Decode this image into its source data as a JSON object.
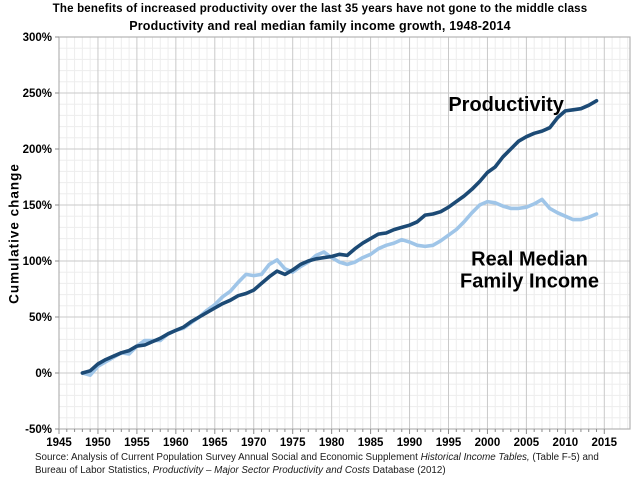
{
  "header": {
    "title_line1": "The benefits of increased productivity over the last 35 years have not gone to the middle class",
    "title_line2": "Productivity and real median family income growth, 1948-2014"
  },
  "chart_data": {
    "type": "line",
    "title": "The benefits of increased productivity over the last 35 years have not gone to the middle class",
    "subtitle": "Productivity and real median family income growth, 1948-2014",
    "xlabel": "",
    "ylabel": "Cumulative change",
    "ylim": [
      -50,
      300
    ],
    "xlim": [
      1945,
      2015
    ],
    "y_ticks": [
      -50,
      0,
      50,
      100,
      150,
      200,
      250,
      300
    ],
    "y_tick_format": "percent",
    "x_ticks": [
      1945,
      1950,
      1955,
      1960,
      1965,
      1970,
      1975,
      1980,
      1985,
      1990,
      1995,
      2000,
      2005,
      2010,
      2015
    ],
    "grid": "minor yearly / 10% + major 5-year / 50%",
    "legend_position": "direct-labels-on-chart",
    "x": [
      1948,
      1949,
      1950,
      1951,
      1952,
      1953,
      1954,
      1955,
      1956,
      1957,
      1958,
      1959,
      1960,
      1961,
      1962,
      1963,
      1964,
      1965,
      1966,
      1967,
      1968,
      1969,
      1970,
      1971,
      1972,
      1973,
      1974,
      1975,
      1976,
      1977,
      1978,
      1979,
      1980,
      1981,
      1982,
      1983,
      1984,
      1985,
      1986,
      1987,
      1988,
      1989,
      1990,
      1991,
      1992,
      1993,
      1994,
      1995,
      1996,
      1997,
      1998,
      1999,
      2000,
      2001,
      2002,
      2003,
      2004,
      2005,
      2006,
      2007,
      2008,
      2009,
      2010,
      2011,
      2012,
      2013,
      2014
    ],
    "series": [
      {
        "name": "Productivity",
        "color": "#1c4a75",
        "values": [
          0,
          2,
          8,
          12,
          15,
          18,
          20,
          24,
          25,
          28,
          31,
          35,
          38,
          41,
          46,
          50,
          54,
          58,
          62,
          65,
          69,
          71,
          74,
          80,
          86,
          91,
          88,
          92,
          97,
          100,
          102,
          103,
          104,
          106,
          105,
          111,
          116,
          120,
          124,
          125,
          128,
          130,
          132,
          135,
          141,
          142,
          144,
          148,
          153,
          158,
          164,
          171,
          179,
          184,
          193,
          200,
          207,
          211,
          214,
          216,
          219,
          228,
          234,
          235,
          236,
          239,
          243
        ]
      },
      {
        "name": "Real Median Family Income",
        "color": "#9fc5e8",
        "values": [
          0,
          -2,
          6,
          10,
          14,
          18,
          17,
          24,
          29,
          29,
          29,
          35,
          38,
          40,
          45,
          50,
          56,
          61,
          68,
          73,
          81,
          88,
          87,
          88,
          97,
          101,
          93,
          90,
          95,
          99,
          105,
          108,
          103,
          99,
          97,
          99,
          103,
          106,
          111,
          114,
          116,
          119,
          117,
          114,
          113,
          114,
          118,
          123,
          128,
          135,
          143,
          150,
          153,
          152,
          149,
          147,
          147,
          148,
          151,
          155,
          147,
          143,
          140,
          137,
          137,
          139,
          142
        ]
      }
    ],
    "annotations": [
      {
        "name": "productivity-label",
        "lines": [
          "Productivity"
        ],
        "x": 2002.4,
        "y": 234
      },
      {
        "name": "income-label",
        "lines": [
          "Real Median",
          "Family Income"
        ],
        "x": 2005.4,
        "y": 96
      }
    ]
  },
  "source": {
    "line1_segments": [
      {
        "text": "Source:  Analysis of Current Population Survey Annual Social and Economic Supplement ",
        "italic": false
      },
      {
        "text": "Historical Income Tables,",
        "italic": true
      },
      {
        "text": " (Table F-5) and",
        "italic": false
      }
    ],
    "line2_segments": [
      {
        "text": "Bureau of Labor Statistics, ",
        "italic": false
      },
      {
        "text": "Productivity – Major Sector Productivity and Costs",
        "italic": true
      },
      {
        "text": " Database (2012)",
        "italic": false
      }
    ]
  }
}
